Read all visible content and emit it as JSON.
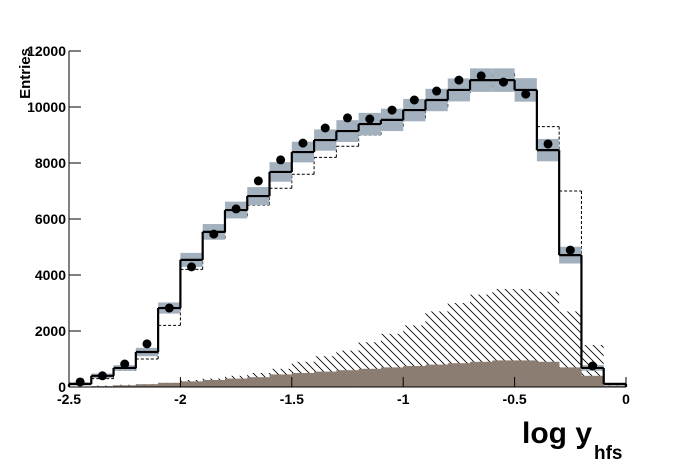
{
  "chart_data": {
    "type": "histogram",
    "ylabel": "Entries",
    "xlabel": "log y",
    "xlabel_sub": "hfs",
    "xlim": [
      -2.5,
      0
    ],
    "ylim": [
      0,
      12000
    ],
    "xticks": [
      -2.5,
      -2,
      -1.5,
      -1,
      -0.5,
      0
    ],
    "yticks": [
      0,
      2000,
      4000,
      6000,
      8000,
      10000,
      12000
    ],
    "bins": [
      -2.5,
      -2.4,
      -2.3,
      -2.2,
      -2.1,
      -2.0,
      -1.9,
      -1.8,
      -1.7,
      -1.6,
      -1.5,
      -1.4,
      -1.3,
      -1.2,
      -1.1,
      -1.0,
      -0.9,
      -0.8,
      -0.7,
      -0.6,
      -0.5,
      -0.4,
      -0.3,
      -0.2,
      -0.1,
      0
    ],
    "series": [
      {
        "style": "dashed",
        "color": "#000000",
        "values": [
          100,
          300,
          600,
          1000,
          2200,
          4200,
          5300,
          6100,
          6500,
          7100,
          7600,
          8200,
          8600,
          9000,
          9300,
          9600,
          10000,
          10500,
          10700,
          11200,
          10600,
          9300,
          7000,
          300,
          50
        ]
      },
      {
        "style": "hatched",
        "color": "#000000",
        "values": [
          0,
          50,
          80,
          100,
          150,
          250,
          300,
          400,
          500,
          650,
          900,
          1100,
          1300,
          1600,
          1900,
          2200,
          2700,
          3000,
          3300,
          3500,
          3500,
          3400,
          2700,
          1500,
          150
        ]
      },
      {
        "style": "filled",
        "color": "#8c7d72",
        "values": [
          0,
          30,
          60,
          100,
          150,
          200,
          250,
          300,
          350,
          450,
          500,
          550,
          600,
          650,
          700,
          750,
          800,
          850,
          900,
          950,
          950,
          900,
          700,
          400,
          50
        ]
      },
      {
        "style": "band",
        "color": "#a3b1bf",
        "values": [
          110,
          400,
          680,
          1250,
          2820,
          4540,
          5540,
          6320,
          6820,
          7680,
          8390,
          8820,
          9140,
          9390,
          9540,
          9890,
          10250,
          10610,
          10960,
          10960,
          10610,
          8460,
          4710,
          680,
          110
        ],
        "errors": [
          60,
          80,
          100,
          150,
          200,
          250,
          280,
          300,
          320,
          350,
          370,
          380,
          390,
          400,
          400,
          400,
          400,
          410,
          420,
          420,
          420,
          400,
          300,
          100,
          50
        ]
      },
      {
        "style": "solid",
        "color": "#000000",
        "values": [
          110,
          400,
          680,
          1250,
          2820,
          4540,
          5540,
          6320,
          6820,
          7680,
          8390,
          8820,
          9140,
          9390,
          9540,
          9890,
          10250,
          10610,
          10960,
          10960,
          10610,
          8460,
          4710,
          680,
          110
        ]
      },
      {
        "style": "points",
        "color": "#000000",
        "values": [
          180,
          400,
          820,
          1540,
          2820,
          4290,
          5460,
          6360,
          7360,
          8110,
          8710,
          9250,
          9610,
          9570,
          9890,
          10250,
          10570,
          10960,
          11110,
          10890,
          10460,
          8680,
          4890,
          750,
          null
        ]
      }
    ]
  }
}
